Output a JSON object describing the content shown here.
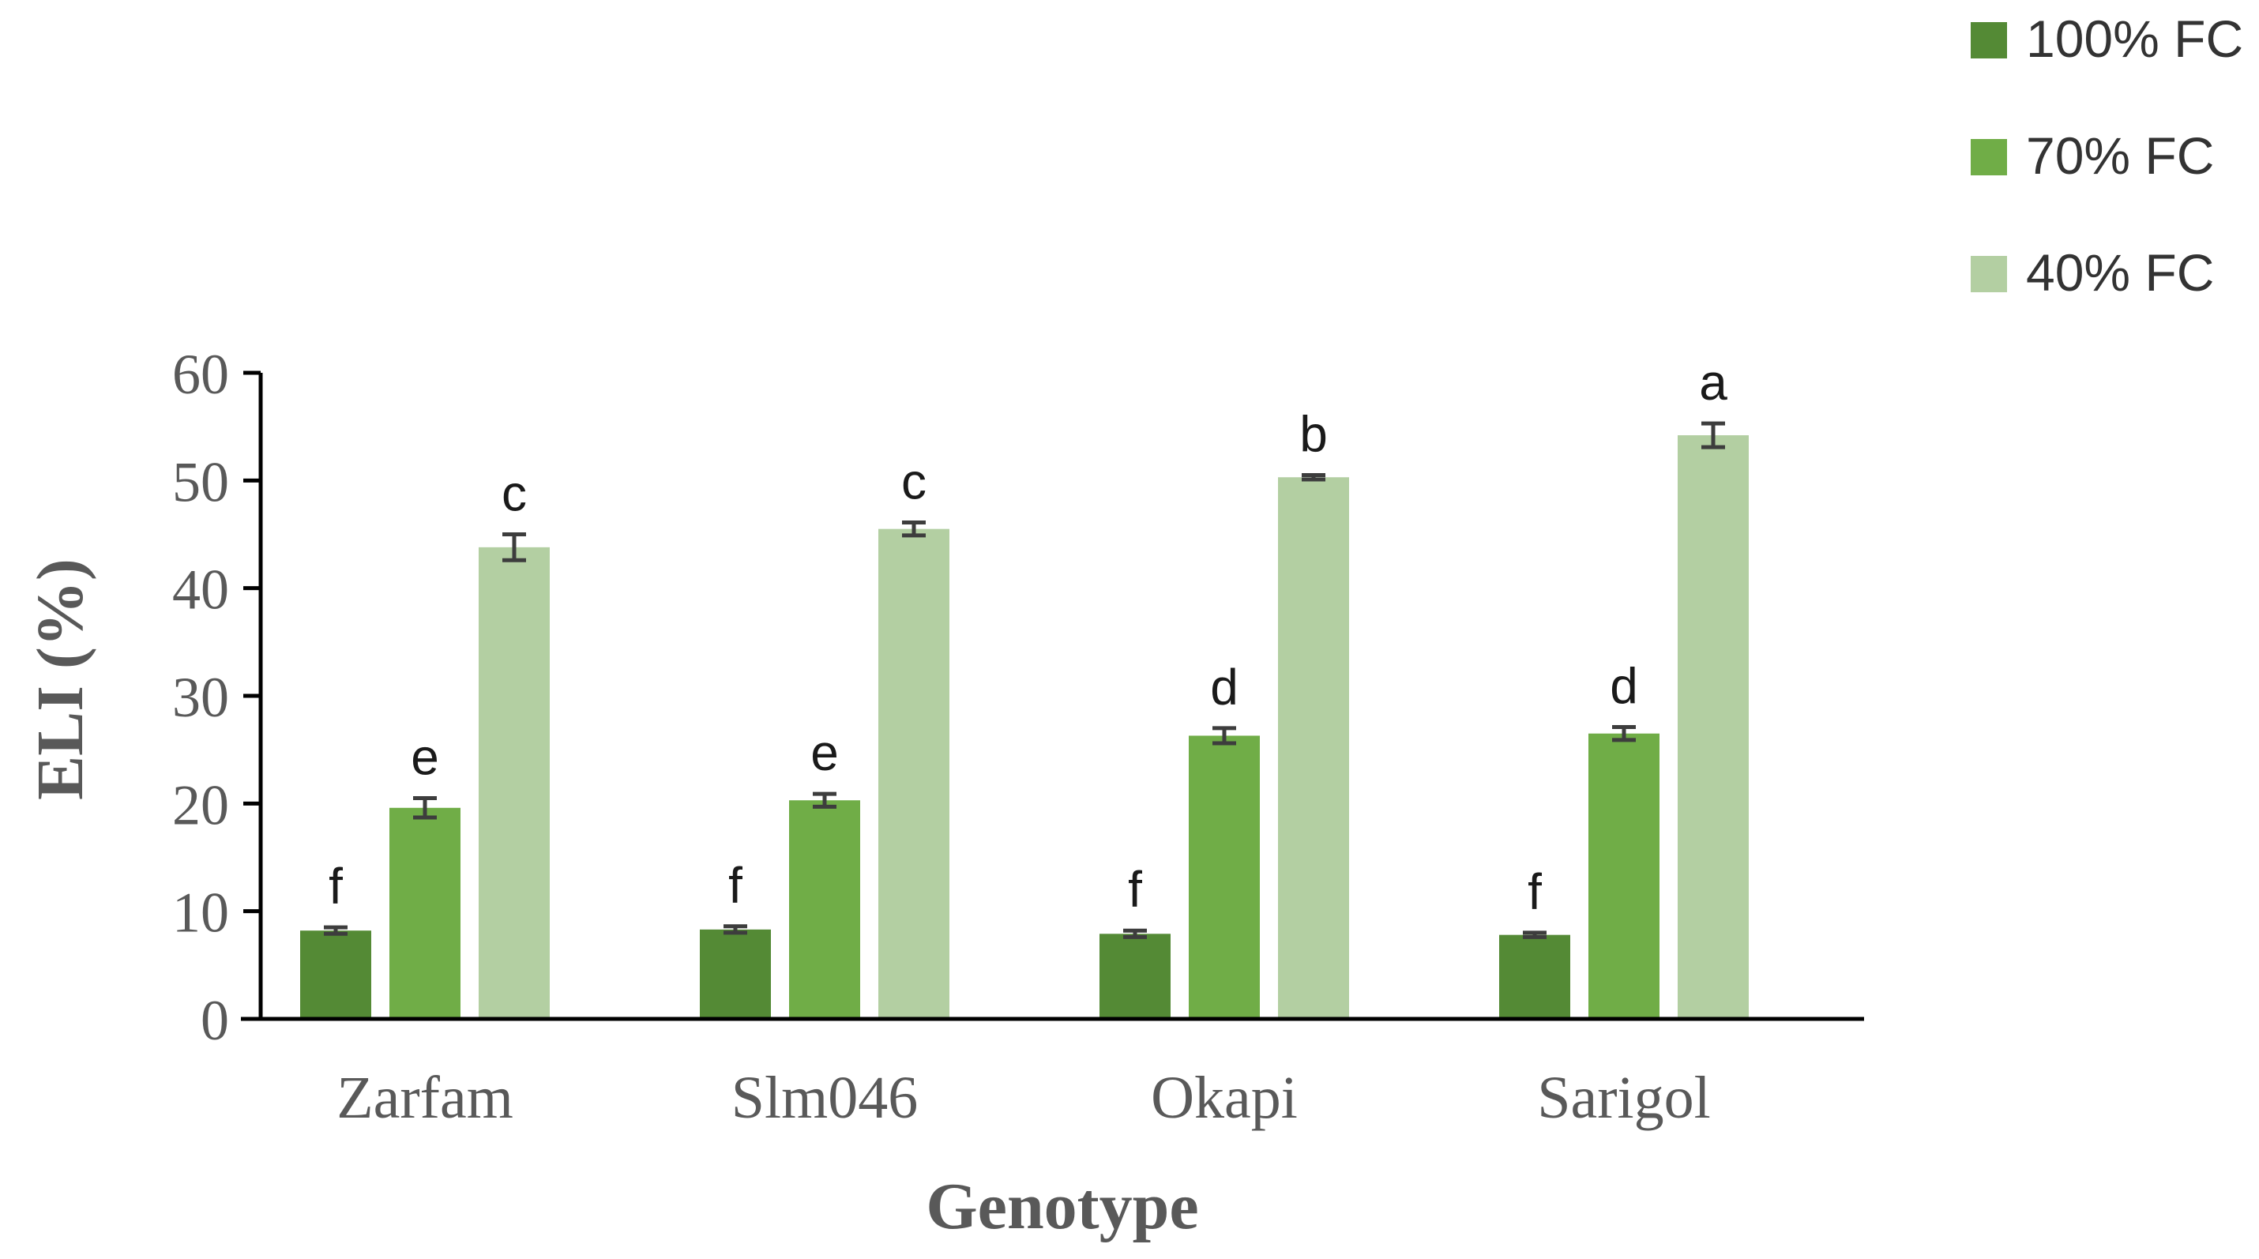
{
  "chart_data": {
    "type": "bar",
    "title": "",
    "xlabel": "Genotype",
    "ylabel": "ELI (%)",
    "ylim": [
      0,
      60
    ],
    "yticks": [
      0,
      10,
      20,
      30,
      40,
      50,
      60
    ],
    "ytick_labels": [
      "0",
      "10",
      "20",
      "30",
      "40",
      "50",
      "60"
    ],
    "categories": [
      "Zarfam",
      "Slm046",
      "Okapi",
      "Sarigol"
    ],
    "legend_position": "top-right",
    "series": [
      {
        "name": "100% FC",
        "color": "#548a35",
        "values": [
          8.2,
          8.3,
          7.9,
          7.8
        ],
        "errors": [
          0.3,
          0.3,
          0.3,
          0.2
        ],
        "letters": [
          "f",
          "f",
          "f",
          "f"
        ]
      },
      {
        "name": "70% FC",
        "color": "#70ad47",
        "values": [
          19.6,
          20.3,
          26.3,
          26.5
        ],
        "errors": [
          0.9,
          0.6,
          0.7,
          0.6
        ],
        "letters": [
          "e",
          "e",
          "d",
          "d"
        ]
      },
      {
        "name": "40% FC",
        "color": "#b3cfa2",
        "values": [
          43.8,
          45.5,
          50.3,
          54.2
        ],
        "errors": [
          1.2,
          0.6,
          0.2,
          1.1
        ],
        "letters": [
          "c",
          "c",
          "b",
          "a"
        ]
      }
    ],
    "error_bar_color": "#3d3d3d",
    "axis_color": "#000000",
    "label_color": "#595959"
  }
}
